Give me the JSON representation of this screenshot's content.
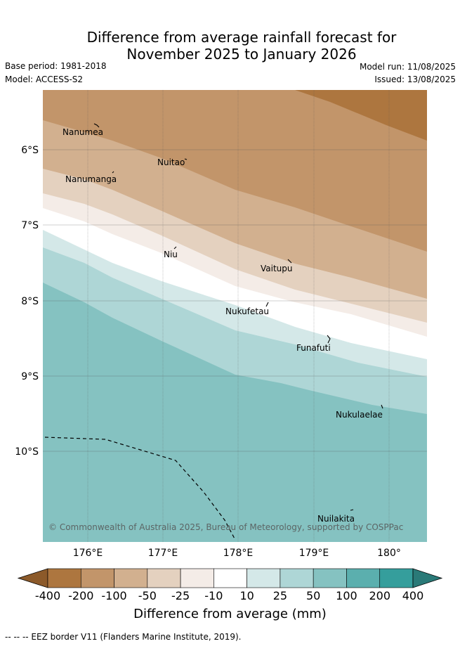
{
  "title_line1": "Difference from average rainfall forecast for",
  "title_line2": "November 2025 to January 2026",
  "base_period": "Base period: 1981-2018",
  "model": "Model: ACCESS-S2",
  "model_run": "Model run: 11/08/2025",
  "issued": "Issued: 13/08/2025",
  "copyright": "© Commonwealth of Australia 2025, Bureau of Meteorology, supported by COSPPac",
  "lat_labels": [
    "6°S",
    "7°S",
    "8°S",
    "9°S",
    "10°S"
  ],
  "lon_labels": [
    "176°E",
    "177°E",
    "178°E",
    "179°E",
    "180°"
  ],
  "places": [
    "Nanumea",
    "Nuitao",
    "Nanumanga",
    "Niu",
    "Vaitupu",
    "Nukufetau",
    "Funafuti",
    "Nukulaelae",
    "Nuilakita"
  ],
  "colorbar": {
    "ticks": [
      "-400",
      "-200",
      "-100",
      "-50",
      "-25",
      "-10",
      "10",
      "25",
      "50",
      "100",
      "200",
      "400"
    ],
    "colors": [
      "#8c5a2a",
      "#ad763f",
      "#c2956a",
      "#d2b08f",
      "#e4d1bf",
      "#f4ece7",
      "#ffffff",
      "#d4e8e8",
      "#aed6d6",
      "#85c2c1",
      "#5bafae",
      "#359e9c",
      "#2a7a78"
    ],
    "label": "Difference from average (mm)"
  },
  "legend_footer": "-- -- -- EEZ border V11 (Flanders Marine Institute, 2019)."
}
